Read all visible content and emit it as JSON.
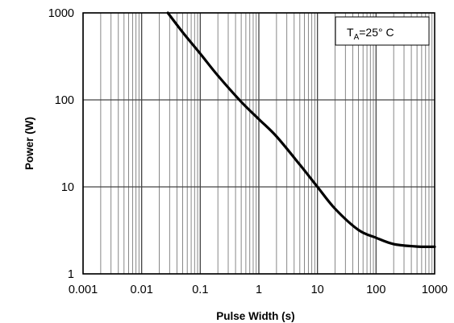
{
  "chart_data": {
    "type": "line",
    "title": "",
    "xlabel": "Pulse Width (s)",
    "ylabel": "Power (W)",
    "x_scale": "log",
    "y_scale": "log",
    "xlim": [
      0.001,
      1000
    ],
    "ylim": [
      1,
      1000
    ],
    "x_ticks": [
      "0.001",
      "0.01",
      "0.1",
      "1",
      "10",
      "100",
      "1000"
    ],
    "y_ticks": [
      "1",
      "10",
      "100",
      "1000"
    ],
    "grid": true,
    "annotation": {
      "main": "T",
      "sub": "A",
      "rest": "=25° C"
    },
    "series": [
      {
        "line_color": "#000000",
        "x": [
          0.028,
          0.05,
          0.1,
          0.2,
          0.5,
          1,
          2,
          5,
          10,
          20,
          50,
          100,
          200,
          500,
          1000
        ],
        "y": [
          1000,
          600,
          340,
          190,
          95,
          60,
          38,
          18,
          10,
          5.6,
          3.2,
          2.6,
          2.2,
          2.06,
          2.05
        ]
      }
    ]
  }
}
